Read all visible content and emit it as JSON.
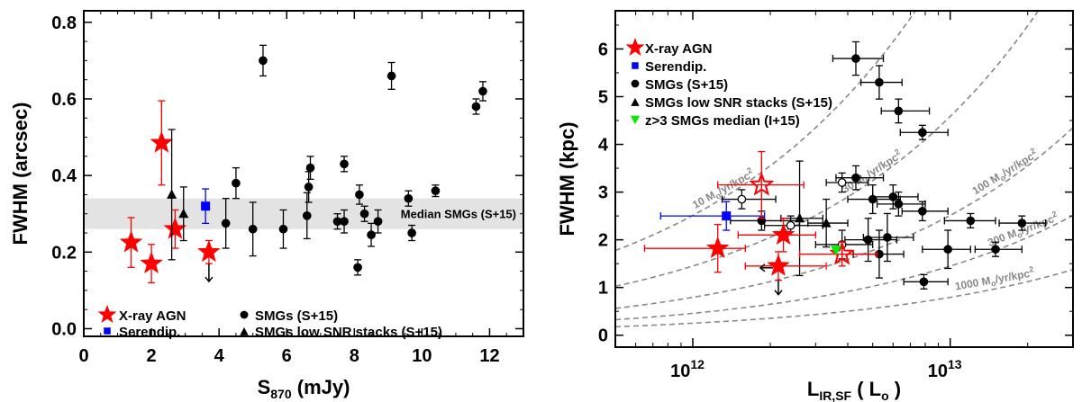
{
  "colors": {
    "agn": "#ff0000",
    "serendip": "#0000ff",
    "smg": "#000000",
    "median_green": "#00ee00",
    "band": "#e3e3e3",
    "curve": "#888888"
  },
  "chart_data": [
    {
      "type": "scatter",
      "xlabel": "S",
      "xlabel_sub": "870",
      "xlabel_unit": " (mJy)",
      "ylabel": "FWHM (arcsec)",
      "xlim": [
        0,
        13
      ],
      "ylim": [
        -0.02,
        0.83
      ],
      "xticks": [
        "0",
        "2",
        "4",
        "6",
        "8",
        "10",
        "12"
      ],
      "yticks": [
        "0.0",
        "0.2",
        "0.4",
        "0.6",
        "0.8"
      ],
      "median_band": {
        "y_low": 0.26,
        "y_high": 0.34,
        "label": "Median SMGs (S+15)"
      },
      "legend": [
        {
          "label": "X-ray AGN",
          "marker": "star",
          "color": "#ff0000"
        },
        {
          "label": "Serendip.",
          "marker": "square",
          "color": "#0000ff"
        },
        {
          "label": "SMGs (S+15)",
          "marker": "circle",
          "color": "#000000"
        },
        {
          "label": "SMGs low SNR stacks (S+15)",
          "marker": "triangle",
          "color": "#000000"
        }
      ],
      "series": [
        {
          "name": "X-ray AGN",
          "marker": "star",
          "color": "#ff0000",
          "points": [
            {
              "x": 1.4,
              "y": 0.225,
              "yerr": 0.065
            },
            {
              "x": 2.0,
              "y": 0.17,
              "yerr": 0.05
            },
            {
              "x": 2.3,
              "y": 0.485,
              "yerr": 0.11
            },
            {
              "x": 2.7,
              "y": 0.26,
              "yerr": 0.05
            },
            {
              "x": 3.7,
              "y": 0.2,
              "yerr": 0.03,
              "upper_limit": true
            }
          ]
        },
        {
          "name": "Serendip.",
          "marker": "square",
          "color": "#0000ff",
          "points": [
            {
              "x": 3.6,
              "y": 0.32,
              "yerr": 0.045
            }
          ]
        },
        {
          "name": "SMGs (S+15)",
          "marker": "circle",
          "color": "#000000",
          "points": [
            {
              "x": 4.2,
              "y": 0.275,
              "yerr": 0.065
            },
            {
              "x": 4.5,
              "y": 0.38,
              "yerr": 0.04
            },
            {
              "x": 5.0,
              "y": 0.26,
              "yerr": 0.07
            },
            {
              "x": 5.3,
              "y": 0.7,
              "yerr": 0.04
            },
            {
              "x": 5.9,
              "y": 0.26,
              "yerr": 0.05
            },
            {
              "x": 6.6,
              "y": 0.295,
              "yerr": 0.06
            },
            {
              "x": 6.65,
              "y": 0.37,
              "yerr": 0.04
            },
            {
              "x": 6.7,
              "y": 0.42,
              "yerr": 0.03
            },
            {
              "x": 7.5,
              "y": 0.28,
              "yerr": 0.02
            },
            {
              "x": 7.7,
              "y": 0.28,
              "yerr": 0.03
            },
            {
              "x": 7.7,
              "y": 0.43,
              "yerr": 0.02
            },
            {
              "x": 8.1,
              "y": 0.16,
              "yerr": 0.02
            },
            {
              "x": 8.15,
              "y": 0.35,
              "yerr": 0.025
            },
            {
              "x": 8.3,
              "y": 0.3,
              "yerr": 0.02
            },
            {
              "x": 8.5,
              "y": 0.245,
              "yerr": 0.03
            },
            {
              "x": 8.7,
              "y": 0.28,
              "yerr": 0.03
            },
            {
              "x": 9.1,
              "y": 0.66,
              "yerr": 0.035
            },
            {
              "x": 9.6,
              "y": 0.34,
              "yerr": 0.02
            },
            {
              "x": 9.7,
              "y": 0.25,
              "yerr": 0.02
            },
            {
              "x": 10.4,
              "y": 0.36,
              "yerr": 0.015
            },
            {
              "x": 11.6,
              "y": 0.58,
              "yerr": 0.02
            },
            {
              "x": 11.8,
              "y": 0.62,
              "yerr": 0.025
            }
          ]
        },
        {
          "name": "SMGs low SNR stacks (S+15)",
          "marker": "triangle",
          "color": "#000000",
          "points": [
            {
              "x": 2.6,
              "y": 0.35,
              "yerr": 0.17
            },
            {
              "x": 2.95,
              "y": 0.3,
              "yerr": 0.07
            }
          ]
        }
      ]
    },
    {
      "type": "scatter",
      "xlabel": "L",
      "xlabel_sub": "IR,SF",
      "xlabel_unit": " ( L",
      "xlabel_unit_sub": "o",
      "xlabel_close": " )",
      "ylabel": "FWHM (kpc)",
      "xscale": "log",
      "xlim": [
        500000000000.0,
        30000000000000.0
      ],
      "ylim": [
        -0.25,
        6.8
      ],
      "xticks": [
        {
          "value": 1000000000000.0,
          "base": "10",
          "exp": "12"
        },
        {
          "value": 10000000000000.0,
          "base": "10",
          "exp": "13"
        }
      ],
      "yticks": [
        "0",
        "1",
        "2",
        "3",
        "4",
        "5",
        "6"
      ],
      "legend": [
        {
          "label": "X-ray AGN",
          "marker": "star",
          "color": "#ff0000"
        },
        {
          "label": "Serendip.",
          "marker": "square",
          "color": "#0000ff"
        },
        {
          "label": "SMGs (S+15)",
          "marker": "circle",
          "color": "#000000"
        },
        {
          "label": "SMGs low SNR stacks (S+15)",
          "marker": "triangle",
          "color": "#000000"
        },
        {
          "label": "z>3 SMGs median (I+15)",
          "marker": "triangle-down",
          "color": "#00ee00"
        }
      ],
      "ssfr_curves": [
        {
          "sigma": 10,
          "label": "10 M",
          "label_sub": "o",
          "label_rest": "/yr/kpc",
          "label_sup": "2"
        },
        {
          "sigma": 30,
          "label": "30 M",
          "label_sub": "o",
          "label_rest": "/yr/kpc",
          "label_sup": "2"
        },
        {
          "sigma": 100,
          "label": "100 M",
          "label_sub": "o",
          "label_rest": "/yr/kpc",
          "label_sup": "2"
        },
        {
          "sigma": 300,
          "label": "300 M",
          "label_sub": "o",
          "label_rest": "/yr/kpc",
          "label_sup": "2"
        },
        {
          "sigma": 1000,
          "label": "1000 M",
          "label_sub": "o",
          "label_rest": "/yr/kpc",
          "label_sup": "2"
        }
      ],
      "series": [
        {
          "name": "X-ray AGN",
          "marker": "star",
          "color": "#ff0000",
          "points": [
            {
              "x": 1250000000000.0,
              "y": 1.82,
              "xlo": 650000000000.0,
              "xhi": 1600000000000.0,
              "yerr": 0.5
            },
            {
              "x": 1850000000000.0,
              "y": 3.15,
              "xlo": 1250000000000.0,
              "xhi": 2700000000000.0,
              "yerr": 0.7,
              "open": true
            },
            {
              "x": 2150000000000.0,
              "y": 1.45,
              "xlo": 1600000000000.0,
              "xhi": 3300000000000.0,
              "yerr": 0.3,
              "upper_limit": true
            },
            {
              "x": 2250000000000.0,
              "y": 2.1,
              "xlo": 1500000000000.0,
              "xhi": 3000000000000.0,
              "yerr": 0.35
            },
            {
              "x": 3800000000000.0,
              "y": 1.7,
              "xlo": 2600000000000.0,
              "xhi": 5200000000000.0,
              "yerr": 0.25,
              "open": true
            }
          ]
        },
        {
          "name": "Serendip.",
          "marker": "square",
          "color": "#0000ff",
          "points": [
            {
              "x": 1350000000000.0,
              "y": 2.5,
              "xlo": 750000000000.0,
              "xhi": 1900000000000.0,
              "yerr": 0.3
            }
          ]
        },
        {
          "name": "SMGs (S+15)",
          "marker": "circle",
          "color": "#000000",
          "points": [
            {
              "x": 1550000000000.0,
              "y": 2.85,
              "xlo": 1300000000000.0,
              "xhi": 2100000000000.0,
              "yerr": 0.2,
              "open": true
            },
            {
              "x": 1850000000000.0,
              "y": 2.4,
              "xlo": 1400000000000.0,
              "xhi": 2600000000000.0,
              "yerr": 0.2
            },
            {
              "x": 2400000000000.0,
              "y": 2.3,
              "xlo": 1900000000000.0,
              "xhi": 3200000000000.0,
              "yerr": 0.2,
              "open": true
            },
            {
              "x": 3800000000000.0,
              "y": 3.2,
              "xlo": 3300000000000.0,
              "xhi": 4800000000000.0,
              "yerr": 0.2,
              "open": true
            },
            {
              "x": 3800000000000.0,
              "y": 1.9,
              "xlo": 3000000000000.0,
              "xhi": 5000000000000.0,
              "yerr": 0.3,
              "open": true
            },
            {
              "x": 4300000000000.0,
              "y": 5.8,
              "xlo": 3500000000000.0,
              "xhi": 5500000000000.0,
              "yerr": 0.35
            },
            {
              "x": 4300000000000.0,
              "y": 3.3,
              "xlo": 3600000000000.0,
              "xhi": 5500000000000.0,
              "yerr": 0.25
            },
            {
              "x": 4800000000000.0,
              "y": 2.0,
              "xlo": 3900000000000.0,
              "xhi": 6200000000000.0,
              "yerr": 0.45
            },
            {
              "x": 5000000000000.0,
              "y": 2.85,
              "xlo": 4000000000000.0,
              "xhi": 6400000000000.0,
              "yerr": 0.3
            },
            {
              "x": 5300000000000.0,
              "y": 5.3,
              "xlo": 4500000000000.0,
              "xhi": 6500000000000.0,
              "yerr": 0.35
            },
            {
              "x": 5300000000000.0,
              "y": 1.7,
              "xlo": 4200000000000.0,
              "xhi": 6600000000000.0,
              "yerr": 0.5
            },
            {
              "x": 5700000000000.0,
              "y": 2.05,
              "xlo": 4600000000000.0,
              "xhi": 7200000000000.0,
              "yerr": 0.5
            },
            {
              "x": 6000000000000.0,
              "y": 2.9,
              "xlo": 5000000000000.0,
              "xhi": 7500000000000.0,
              "yerr": 0.25
            },
            {
              "x": 6300000000000.0,
              "y": 2.75,
              "xlo": 5200000000000.0,
              "xhi": 8000000000000.0,
              "yerr": 0.25
            },
            {
              "x": 6300000000000.0,
              "y": 4.7,
              "xlo": 5400000000000.0,
              "xhi": 8300000000000.0,
              "yerr": 0.25
            },
            {
              "x": 7800000000000.0,
              "y": 4.25,
              "xlo": 6400000000000.0,
              "xhi": 9800000000000.0,
              "yerr": 0.15
            },
            {
              "x": 7800000000000.0,
              "y": 2.6,
              "xlo": 6500000000000.0,
              "xhi": 9800000000000.0,
              "yerr": 0.2
            },
            {
              "x": 7900000000000.0,
              "y": 1.12,
              "xlo": 6600000000000.0,
              "xhi": 9800000000000.0,
              "yerr": 0.15
            },
            {
              "x": 9800000000000.0,
              "y": 1.8,
              "xlo": 7800000000000.0,
              "xhi": 12000000000000.0,
              "yerr": 0.4
            },
            {
              "x": 12000000000000.0,
              "y": 2.4,
              "xlo": 9500000000000.0,
              "xhi": 15000000000000.0,
              "yerr": 0.15
            },
            {
              "x": 15000000000000.0,
              "y": 1.8,
              "xlo": 12500000000000.0,
              "xhi": 19000000000000.0,
              "yerr": 0.15
            },
            {
              "x": 19000000000000.0,
              "y": 2.35,
              "xlo": 15500000000000.0,
              "xhi": 23500000000000.0,
              "yerr": 0.15
            }
          ]
        },
        {
          "name": "SMGs low SNR stacks (S+15)",
          "marker": "triangle",
          "color": "#000000",
          "points": [
            {
              "x": 2600000000000.0,
              "y": 2.45,
              "xlo": 2200000000000.0,
              "xhi": 3200000000000.0,
              "yerr": 1.2
            },
            {
              "x": 3300000000000.0,
              "y": 2.35,
              "xlo": 2800000000000.0,
              "xhi": 4000000000000.0,
              "yerr": 0.5
            }
          ]
        },
        {
          "name": "z>3 SMGs median (I+15)",
          "marker": "triangle-down",
          "color": "#00ee00",
          "points": [
            {
              "x": 3600000000000.0,
              "y": 1.78
            }
          ]
        }
      ]
    }
  ]
}
